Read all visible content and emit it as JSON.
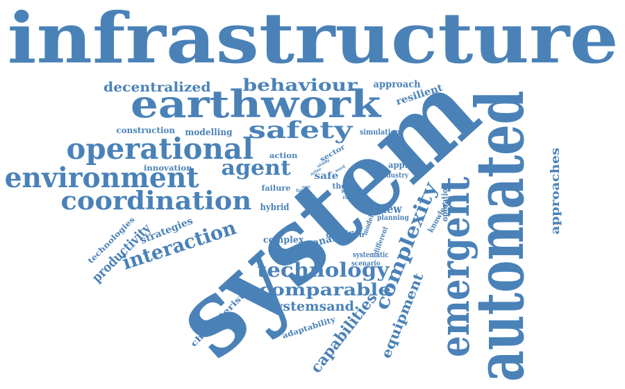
{
  "color": "#4a82b8",
  "words": [
    {
      "id": "infrastructure",
      "text": "infrastructure"
    },
    {
      "id": "system",
      "text": "system"
    },
    {
      "id": "automated",
      "text": "automated"
    },
    {
      "id": "earthwork",
      "text": "earthwork"
    },
    {
      "id": "emergent",
      "text": "emergent"
    },
    {
      "id": "operational",
      "text": "operational"
    },
    {
      "id": "environment",
      "text": "environment"
    },
    {
      "id": "coordination",
      "text": "coordination"
    },
    {
      "id": "safety",
      "text": "safety"
    },
    {
      "id": "agent",
      "text": "agent"
    },
    {
      "id": "interaction",
      "text": "interaction"
    },
    {
      "id": "technology",
      "text": "technology"
    },
    {
      "id": "complexity",
      "text": "complexity"
    },
    {
      "id": "comparable",
      "text": "comparable"
    },
    {
      "id": "behaviour",
      "text": "behaviour"
    },
    {
      "id": "decentralized",
      "text": "decentralized"
    },
    {
      "id": "capabilities",
      "text": "capabilities"
    },
    {
      "id": "equipment",
      "text": "equipment"
    },
    {
      "id": "systemsand",
      "text": "systemsand"
    },
    {
      "id": "productivity",
      "text": "productivity"
    },
    {
      "id": "approaches",
      "text": "approaches"
    },
    {
      "id": "strategies",
      "text": "strategies"
    },
    {
      "id": "review",
      "text": "review"
    },
    {
      "id": "resilient",
      "text": "resilient"
    },
    {
      "id": "approach",
      "text": "approach"
    },
    {
      "id": "construction",
      "text": "construction"
    },
    {
      "id": "modelling",
      "text": "modelling"
    },
    {
      "id": "simulation",
      "text": "simulation"
    },
    {
      "id": "characteristic",
      "text": "characteristic"
    },
    {
      "id": "technologies",
      "text": "technologies"
    },
    {
      "id": "analysis",
      "text": "analysis"
    },
    {
      "id": "knowledge",
      "text": "knowledge"
    },
    {
      "id": "operation",
      "text": "operation"
    },
    {
      "id": "hybrid",
      "text": "hybrid"
    },
    {
      "id": "complex",
      "text": "complex"
    },
    {
      "id": "adaptability",
      "text": "adaptability"
    },
    {
      "id": "applied",
      "text": "applied"
    },
    {
      "id": "innovation",
      "text": "innovation"
    },
    {
      "id": "action",
      "text": "action"
    },
    {
      "id": "failure",
      "text": "failure"
    },
    {
      "id": "detection",
      "text": "detection"
    },
    {
      "id": "systematic",
      "text": "systematic"
    },
    {
      "id": "scenario",
      "text": "scenario"
    },
    {
      "id": "planning",
      "text": "planning"
    },
    {
      "id": "safe",
      "text": "safe"
    },
    {
      "id": "thesis",
      "text": "thesis"
    },
    {
      "id": "industry",
      "text": "industry"
    },
    {
      "id": "sector",
      "text": "sector"
    },
    {
      "id": "model",
      "text": "model"
    },
    {
      "id": "different",
      "text": "different"
    },
    {
      "id": "future",
      "text": "future"
    },
    {
      "id": "range",
      "text": "range"
    },
    {
      "id": "study",
      "text": "study"
    },
    {
      "id": "arise",
      "text": "arise"
    },
    {
      "id": "word",
      "text": "word"
    },
    {
      "id": "better",
      "text": "better"
    },
    {
      "id": "show",
      "text": "show"
    },
    {
      "id": "plan",
      "text": "plan"
    },
    {
      "id": "unit",
      "text": "unit"
    },
    {
      "id": "even",
      "text": "even"
    }
  ]
}
